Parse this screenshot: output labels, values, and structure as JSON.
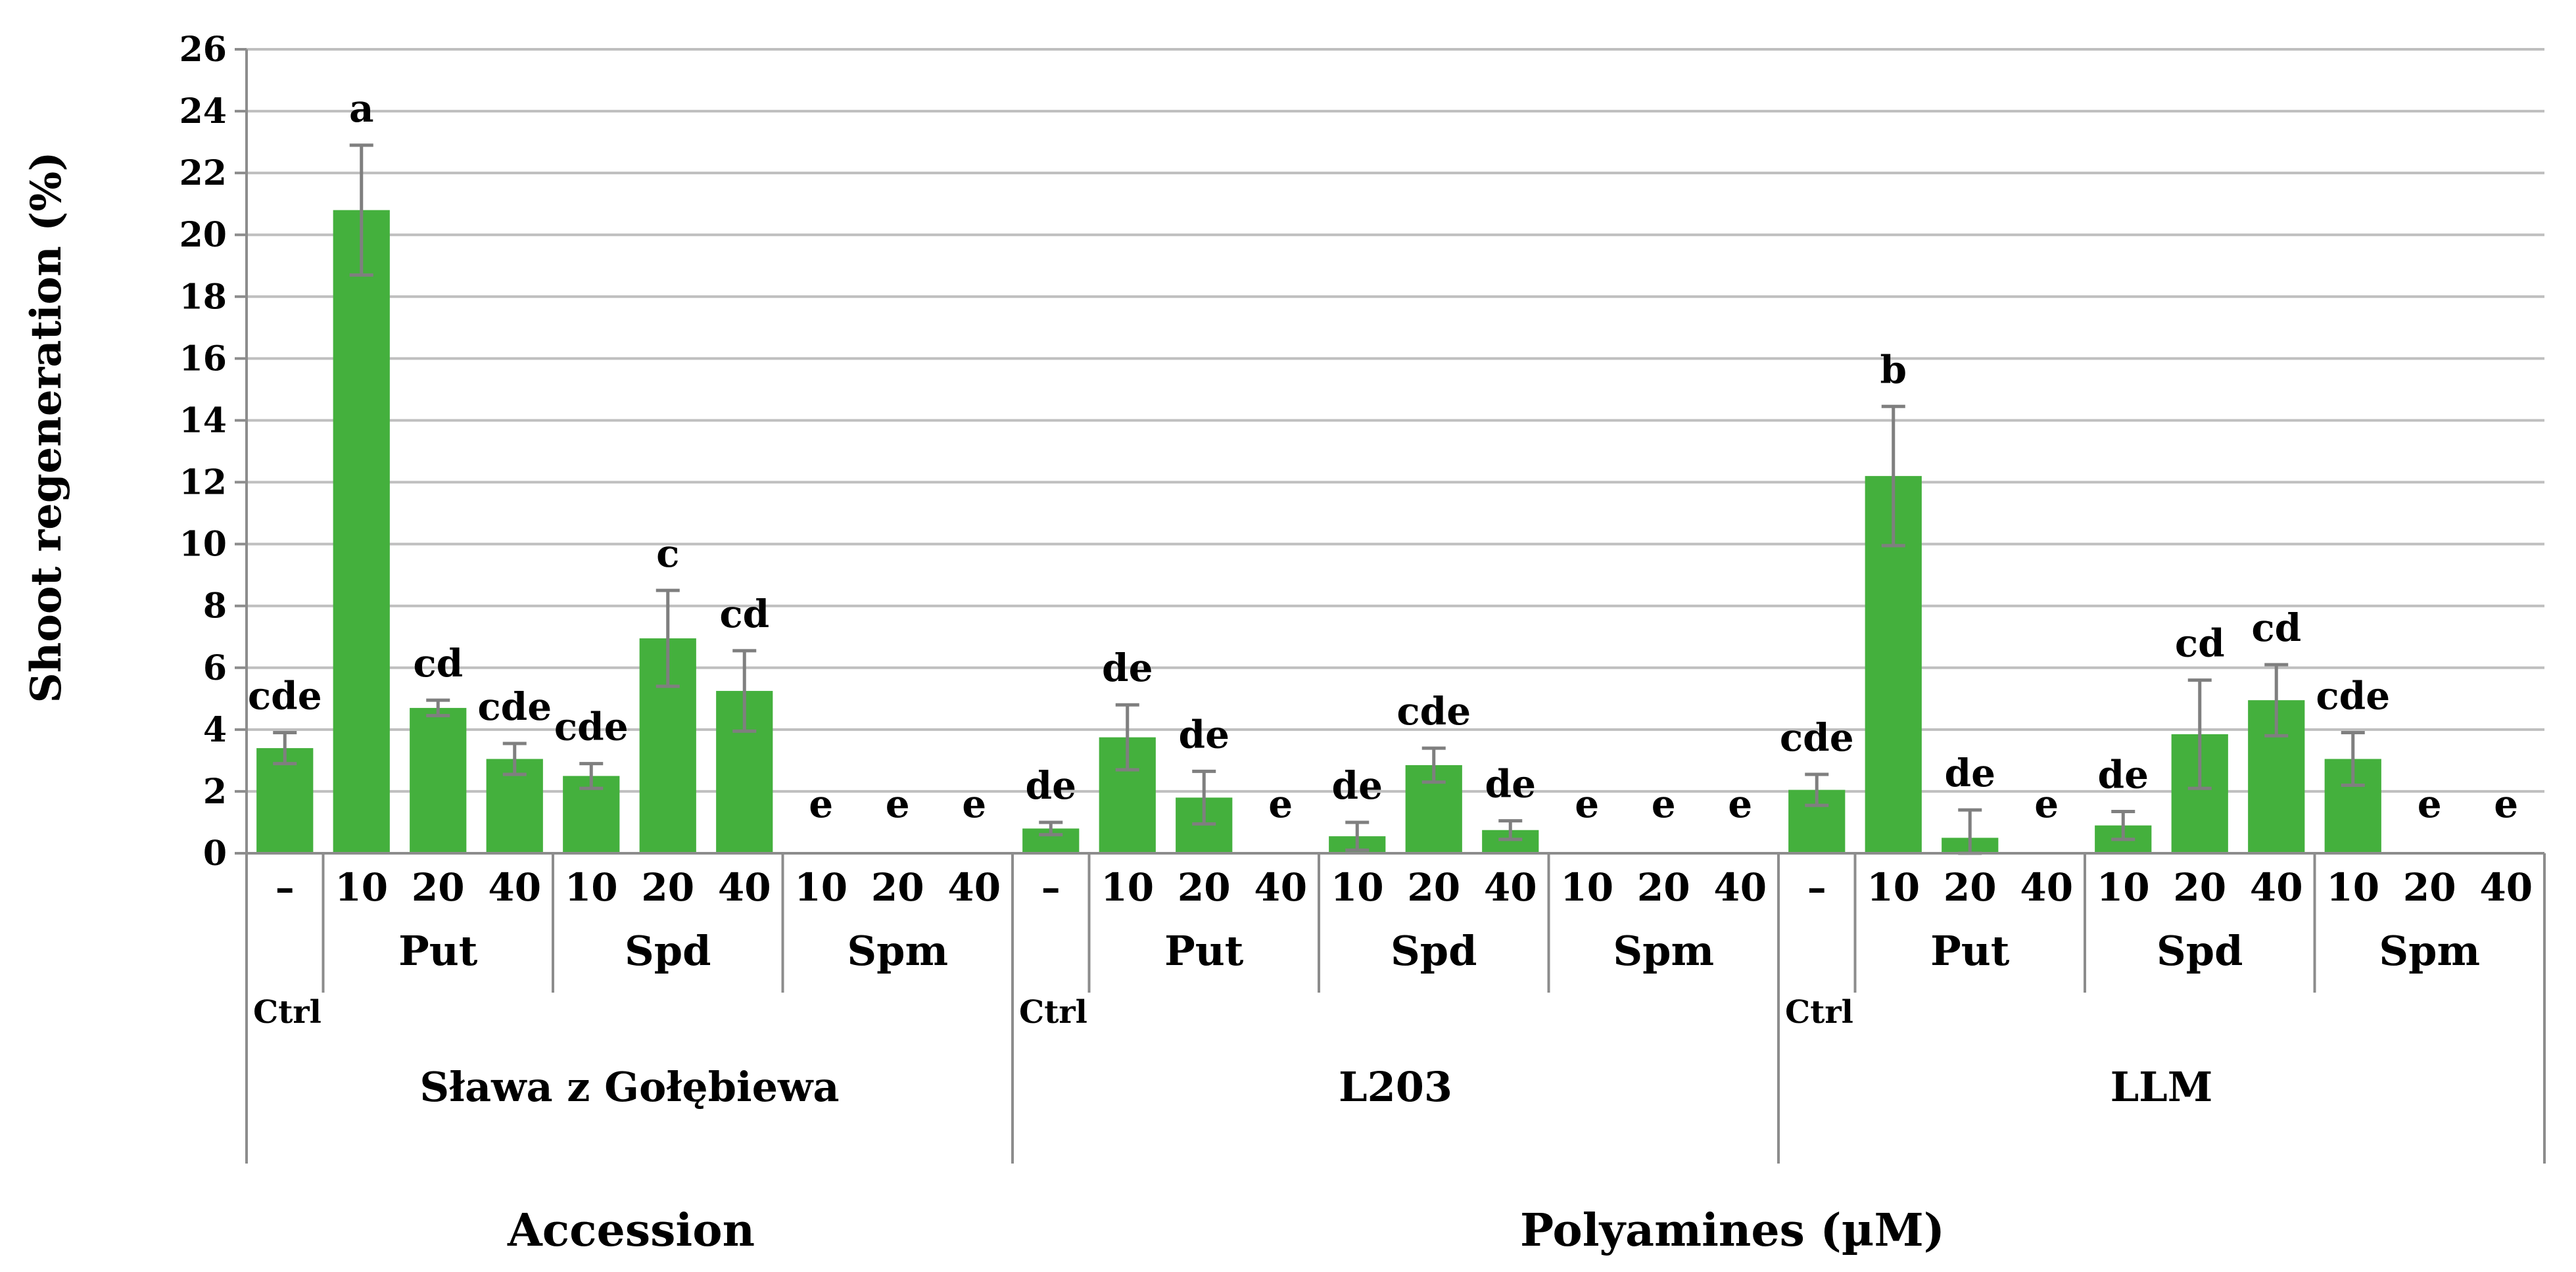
{
  "chart_data": {
    "type": "bar",
    "ylabel": "Shoot regeneration (%)",
    "ylim": [
      0,
      26
    ],
    "yticks": [
      0,
      2,
      4,
      6,
      8,
      10,
      12,
      14,
      16,
      18,
      20,
      22,
      24,
      26
    ],
    "grid": true,
    "bar_color": "#44b03d",
    "error_color": "#7f7f7f",
    "grid_color": "#bfbfbf",
    "ctrl_label": "Ctrl",
    "accession_title": "Accession",
    "polyamines_title": "Polyamines (µM)",
    "accessions": [
      {
        "name": "Sława z Gołębiewa",
        "bars": [
          {
            "label": "–",
            "group": "Ctrl",
            "value": 3.4,
            "error": 0.5,
            "sig": "cde"
          },
          {
            "label": "10",
            "group": "Put",
            "value": 20.8,
            "error": 2.1,
            "sig": "a"
          },
          {
            "label": "20",
            "group": "Put",
            "value": 4.7,
            "error": 0.25,
            "sig": "cd"
          },
          {
            "label": "40",
            "group": "Put",
            "value": 3.05,
            "error": 0.5,
            "sig": "cde"
          },
          {
            "label": "10",
            "group": "Spd",
            "value": 2.5,
            "error": 0.4,
            "sig": "cde"
          },
          {
            "label": "20",
            "group": "Spd",
            "value": 6.95,
            "error": 1.55,
            "sig": "c"
          },
          {
            "label": "40",
            "group": "Spd",
            "value": 5.25,
            "error": 1.3,
            "sig": "cd"
          },
          {
            "label": "10",
            "group": "Spm",
            "value": 0,
            "error": 0,
            "sig": "e"
          },
          {
            "label": "20",
            "group": "Spm",
            "value": 0,
            "error": 0,
            "sig": "e"
          },
          {
            "label": "40",
            "group": "Spm",
            "value": 0,
            "error": 0,
            "sig": "e"
          }
        ]
      },
      {
        "name": "L203",
        "bars": [
          {
            "label": "–",
            "group": "Ctrl",
            "value": 0.8,
            "error": 0.2,
            "sig": "de"
          },
          {
            "label": "10",
            "group": "Put",
            "value": 3.75,
            "error": 1.05,
            "sig": "de"
          },
          {
            "label": "20",
            "group": "Put",
            "value": 1.8,
            "error": 0.85,
            "sig": "de"
          },
          {
            "label": "40",
            "group": "Put",
            "value": 0,
            "error": 0,
            "sig": "e"
          },
          {
            "label": "10",
            "group": "Spd",
            "value": 0.55,
            "error": 0.45,
            "sig": "de"
          },
          {
            "label": "20",
            "group": "Spd",
            "value": 2.85,
            "error": 0.55,
            "sig": "cde"
          },
          {
            "label": "40",
            "group": "Spd",
            "value": 0.75,
            "error": 0.3,
            "sig": "de"
          },
          {
            "label": "10",
            "group": "Spm",
            "value": 0,
            "error": 0,
            "sig": "e"
          },
          {
            "label": "20",
            "group": "Spm",
            "value": 0,
            "error": 0,
            "sig": "e"
          },
          {
            "label": "40",
            "group": "Spm",
            "value": 0,
            "error": 0,
            "sig": "e"
          }
        ]
      },
      {
        "name": "LLM",
        "bars": [
          {
            "label": "–",
            "group": "Ctrl",
            "value": 2.05,
            "error": 0.5,
            "sig": "cde"
          },
          {
            "label": "10",
            "group": "Put",
            "value": 12.2,
            "error": 2.25,
            "sig": "b"
          },
          {
            "label": "20",
            "group": "Put",
            "value": 0.5,
            "error": 0.9,
            "sig": "de"
          },
          {
            "label": "40",
            "group": "Put",
            "value": 0,
            "error": 0,
            "sig": "e"
          },
          {
            "label": "10",
            "group": "Spd",
            "value": 0.9,
            "error": 0.45,
            "sig": "de"
          },
          {
            "label": "20",
            "group": "Spd",
            "value": 3.85,
            "error": 1.75,
            "sig": "cd"
          },
          {
            "label": "40",
            "group": "Spd",
            "value": 4.95,
            "error": 1.15,
            "sig": "cd"
          },
          {
            "label": "10",
            "group": "Spm",
            "value": 3.05,
            "error": 0.85,
            "sig": "cde"
          },
          {
            "label": "20",
            "group": "Spm",
            "value": 0,
            "error": 0,
            "sig": "e"
          },
          {
            "label": "40",
            "group": "Spm",
            "value": 0,
            "error": 0,
            "sig": "e"
          }
        ]
      }
    ]
  }
}
